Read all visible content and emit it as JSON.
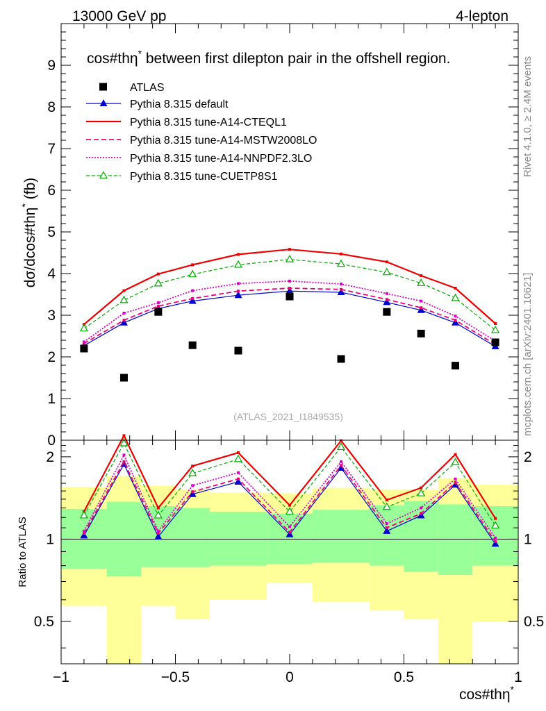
{
  "chart_data": {
    "type": "line",
    "header_left": "13000 GeV pp",
    "header_right": "4-lepton",
    "title": "cos#thη* between first dilepton pair in the offshell region.",
    "title_parts": [
      "cos#thη",
      "*",
      " between first dilepton pair in the offshell region."
    ],
    "ylabel_parts": [
      "dσ/dcos#thη",
      "*",
      " (fb)"
    ],
    "xlabel_parts": [
      "cos#thη",
      "*"
    ],
    "ratio_ylabel": "Ratio to ATLAS",
    "watermark": "(ATLAS_2021_I1849535)",
    "side_text_top": "Rivet 4.1.0, ≥ 2.4M events",
    "side_text_bottom": "mcplots.cern.ch [arXiv:2401.10621]",
    "xlim": [
      -1,
      1
    ],
    "ylim": [
      0,
      10
    ],
    "ratio_ylim": [
      0.35,
      2.3
    ],
    "x_ticks": [
      -1,
      -0.5,
      0,
      0.5,
      1
    ],
    "x_tick_labels": [
      "−1",
      "−0.5",
      "0",
      "0.5",
      "1"
    ],
    "y_ticks": [
      0,
      1,
      2,
      3,
      4,
      5,
      6,
      7,
      8,
      9
    ],
    "y_tick_labels": [
      "0",
      "1",
      "2",
      "3",
      "4",
      "5",
      "6",
      "7",
      "8",
      "9"
    ],
    "ratio_ticks": [
      0.5,
      1,
      2
    ],
    "ratio_tick_labels": [
      "0.5",
      "1",
      "2"
    ],
    "bin_edges": [
      -1.0,
      -0.8,
      -0.65,
      -0.5,
      -0.35,
      -0.1,
      0.1,
      0.35,
      0.5,
      0.65,
      0.8,
      1.0
    ],
    "x": [
      -0.9,
      -0.725,
      -0.575,
      -0.425,
      -0.225,
      0.0,
      0.225,
      0.425,
      0.575,
      0.725,
      0.9
    ],
    "data": {
      "name": "ATLAS",
      "values": [
        2.2,
        1.5,
        3.08,
        2.28,
        2.15,
        3.45,
        1.95,
        3.08,
        2.56,
        1.79,
        2.35
      ]
    },
    "band_inner": {
      "low": [
        0.78,
        0.73,
        0.79,
        0.79,
        0.8,
        0.81,
        0.82,
        0.8,
        0.76,
        0.74,
        0.8
      ],
      "high": [
        1.29,
        1.37,
        1.32,
        1.3,
        1.26,
        1.24,
        1.28,
        1.33,
        1.38,
        1.34,
        1.32
      ]
    },
    "band_outer": {
      "low": [
        0.57,
        0.3,
        0.57,
        0.51,
        0.6,
        0.69,
        0.59,
        0.55,
        0.51,
        0.3,
        0.5
      ],
      "high": [
        1.55,
        1.7,
        1.57,
        1.52,
        1.48,
        1.47,
        1.54,
        1.52,
        1.52,
        1.67,
        1.58
      ]
    },
    "series": [
      {
        "name": "Pythia 8.315 default",
        "color": "#0000cc",
        "dash": "",
        "width": 1.2,
        "marker": "triangle-filled",
        "values": [
          2.27,
          2.82,
          3.16,
          3.34,
          3.48,
          3.58,
          3.55,
          3.31,
          3.12,
          2.82,
          2.25
        ],
        "ratio": [
          1.03,
          1.88,
          1.02,
          1.46,
          1.62,
          1.04,
          1.82,
          1.07,
          1.22,
          1.58,
          0.96
        ]
      },
      {
        "name": "Pythia 8.315 tune-A14-CTEQL1",
        "color": "#ee0000",
        "dash": "",
        "width": 2.2,
        "marker": "square-small",
        "values": [
          2.78,
          3.59,
          3.99,
          4.21,
          4.46,
          4.58,
          4.47,
          4.28,
          3.95,
          3.65,
          2.8
        ],
        "ratio": [
          1.26,
          2.39,
          1.3,
          1.85,
          2.07,
          1.33,
          2.29,
          1.39,
          1.54,
          2.04,
          1.19
        ]
      },
      {
        "name": "Pythia 8.315 tune-A14-MSTW2008LO",
        "color": "#ee0077",
        "dash": "7,4",
        "width": 1.8,
        "marker": "square-small",
        "values": [
          2.32,
          2.88,
          3.22,
          3.4,
          3.58,
          3.65,
          3.62,
          3.38,
          3.18,
          2.88,
          2.3
        ],
        "ratio": [
          1.05,
          1.92,
          1.05,
          1.49,
          1.66,
          1.06,
          1.86,
          1.1,
          1.24,
          1.61,
          0.98
        ]
      },
      {
        "name": "Pythia 8.315 tune-A14-NNPDF2.3LO",
        "color": "#dd00cc",
        "dash": "2,2",
        "width": 1.8,
        "marker": "square-small",
        "values": [
          2.36,
          3.05,
          3.3,
          3.59,
          3.76,
          3.82,
          3.75,
          3.52,
          3.34,
          2.98,
          2.38
        ],
        "ratio": [
          1.07,
          2.03,
          1.07,
          1.57,
          1.75,
          1.11,
          1.92,
          1.14,
          1.3,
          1.66,
          1.01
        ]
      },
      {
        "name": "Pythia 8.315 tune-CUETP8S1",
        "color": "#00aa00",
        "dash": "5,3",
        "width": 1.2,
        "marker": "triangle-open",
        "values": [
          2.68,
          3.36,
          3.76,
          3.98,
          4.21,
          4.34,
          4.23,
          4.03,
          3.77,
          3.41,
          2.64
        ],
        "ratio": [
          1.22,
          2.24,
          1.22,
          1.74,
          1.96,
          1.26,
          2.17,
          1.31,
          1.47,
          1.91,
          1.12
        ]
      }
    ]
  }
}
